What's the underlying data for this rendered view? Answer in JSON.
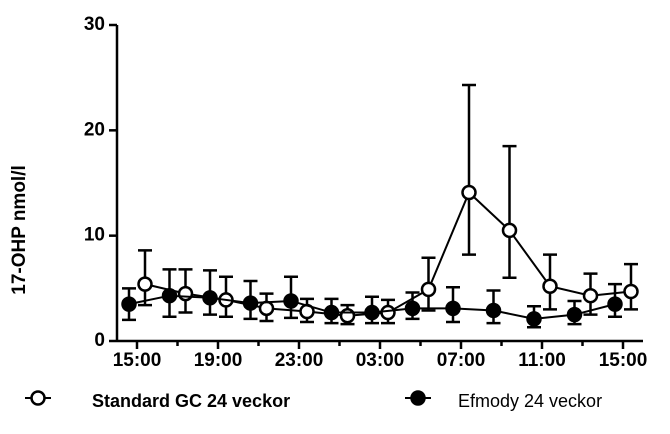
{
  "chart_data": {
    "type": "line",
    "y_label": "17-OHP nmol/l",
    "categories": [
      "15:00",
      null,
      "19:00",
      null,
      "23:00",
      null,
      "03:00",
      null,
      "07:00",
      null,
      "11:00",
      null,
      "15:00"
    ],
    "ylim": [
      0,
      30
    ],
    "yticks": [
      0,
      10,
      20,
      30
    ],
    "series": [
      {
        "name": "Standard GC 24 veckor",
        "color": "#000000",
        "marker": "open",
        "values": [
          5.4,
          4.5,
          3.9,
          3.1,
          2.8,
          2.4,
          2.7,
          4.9,
          14.1,
          10.5,
          5.2,
          4.3,
          4.7
        ],
        "err_plus": [
          3.2,
          2.3,
          2.2,
          1.4,
          1.2,
          1.0,
          1.2,
          3.0,
          10.2,
          8.0,
          3.0,
          2.1,
          2.6
        ],
        "err_minus": [
          2.0,
          1.8,
          1.6,
          1.2,
          1.0,
          0.8,
          1.0,
          2.0,
          5.9,
          4.5,
          2.2,
          1.8,
          1.7
        ]
      },
      {
        "name": "Efmody 24 veckor",
        "color": "#000000",
        "marker": "filled",
        "values": [
          3.5,
          4.3,
          4.1,
          3.6,
          3.8,
          2.7,
          2.7,
          3.1,
          3.1,
          2.9,
          2.1,
          2.5,
          3.5
        ],
        "err_plus": [
          1.5,
          2.5,
          2.6,
          2.1,
          2.3,
          1.3,
          1.5,
          1.5,
          2.0,
          1.9,
          1.2,
          1.3,
          1.9
        ],
        "err_minus": [
          1.5,
          2.0,
          1.6,
          1.5,
          1.6,
          1.0,
          1.0,
          1.0,
          1.3,
          1.2,
          0.8,
          0.9,
          1.2
        ]
      }
    ]
  }
}
